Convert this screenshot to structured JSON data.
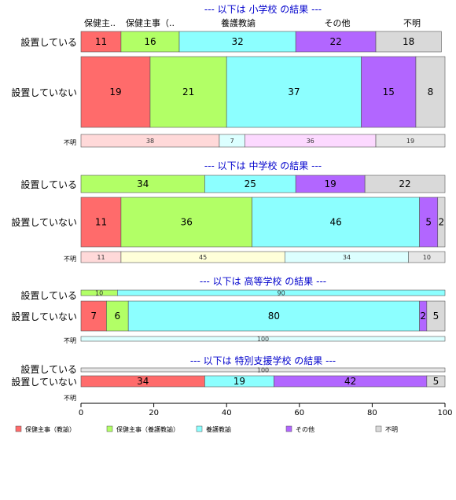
{
  "chart_data": {
    "type": "bar",
    "orientation": "horizontal-stacked-percent",
    "xlim": [
      0,
      100
    ],
    "x_ticks": [
      "0",
      "20",
      "40",
      "60",
      "80",
      "100"
    ],
    "grid": false,
    "legend_placement": "bottom",
    "legend": [
      {
        "name": "保健主事（教諭）",
        "color": "#ff6b6b"
      },
      {
        "name": "保健主事（養護教諭）",
        "color": "#b2ff66"
      },
      {
        "name": "養護教諭",
        "color": "#8cffff"
      },
      {
        "name": "その他",
        "color": "#b266ff"
      },
      {
        "name": "不明",
        "color": "#d9d9d9"
      }
    ],
    "column_headers": [
      "保健主..",
      "保健主事（..",
      "養護教諭",
      "その他",
      "不明"
    ],
    "panels": [
      {
        "title": "--- 以下は 小学校 の結果 ---",
        "rows": [
          {
            "label": "設置している",
            "values": [
              11,
              16,
              32,
              22,
              18
            ]
          },
          {
            "label": "設置していない",
            "values": [
              19,
              21,
              37,
              15,
              8
            ]
          },
          {
            "label": "不明",
            "values": [
              38,
              7,
              36,
              19
            ],
            "colors": [
              "#ffd9d9",
              "#dcffff",
              "#fcd9ff",
              "#e6e6e6"
            ]
          }
        ]
      },
      {
        "title": "--- 以下は 中学校 の結果 ---",
        "rows": [
          {
            "label": "設置している",
            "values": [
              0,
              34,
              25,
              19,
              22
            ]
          },
          {
            "label": "設置していない",
            "values": [
              11,
              36,
              46,
              5,
              2
            ]
          },
          {
            "label": "不明",
            "values": [
              11,
              45,
              34,
              10
            ],
            "colors": [
              "#ffd9d9",
              "#ffffd9",
              "#dcffff",
              "#e6e6e6"
            ]
          }
        ]
      },
      {
        "title": "--- 以下は 高等学校 の結果 ---",
        "rows": [
          {
            "label": "設置している",
            "values": [
              0,
              10,
              90,
              0,
              0
            ]
          },
          {
            "label": "設置していない",
            "values": [
              7,
              6,
              80,
              2,
              5
            ]
          },
          {
            "label": "不明",
            "values": [
              100
            ],
            "colors": [
              "#dcffff"
            ]
          }
        ]
      },
      {
        "title": "--- 以下は 特別支援学校 の結果 ---",
        "rows": [
          {
            "label": "設置している",
            "values": [
              100
            ],
            "colors": [
              "#e6e6e6"
            ]
          },
          {
            "label": "設置していない",
            "values": [
              34,
              0,
              19,
              42,
              5
            ]
          },
          {
            "label": "不明",
            "values": []
          }
        ]
      }
    ]
  }
}
